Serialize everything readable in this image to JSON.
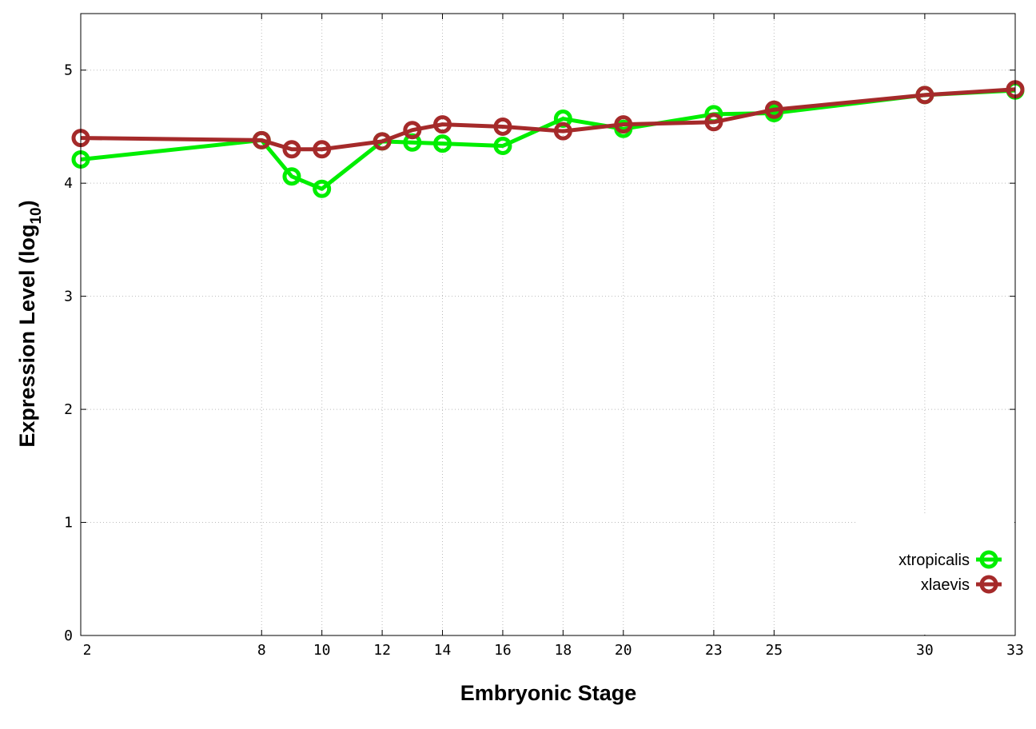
{
  "chart_data": {
    "type": "line",
    "xlabel": "Embryonic Stage",
    "ylabel": {
      "main": "Expression Level (log",
      "sub": "10",
      "close": ")"
    },
    "xlim": [
      2,
      33
    ],
    "ylim": [
      0,
      5.5
    ],
    "x_ticks": [
      2,
      8,
      10,
      12,
      14,
      16,
      18,
      20,
      23,
      25,
      30,
      33
    ],
    "y_ticks": [
      0,
      1,
      2,
      3,
      4,
      5
    ],
    "grid": true,
    "legend": "bottom-right",
    "x": [
      2,
      8,
      9,
      10,
      12,
      13,
      14,
      16,
      18,
      20,
      23,
      25,
      30,
      33
    ],
    "series": [
      {
        "name": "xtropicalis",
        "color": "#00ee00",
        "values": [
          4.21,
          4.38,
          4.06,
          3.95,
          4.37,
          4.36,
          4.35,
          4.33,
          4.57,
          4.48,
          4.61,
          4.62,
          4.78,
          4.82
        ]
      },
      {
        "name": "xlaevis",
        "color": "#a52a2a",
        "values": [
          4.4,
          4.38,
          4.3,
          4.3,
          4.37,
          4.47,
          4.52,
          4.5,
          4.46,
          4.52,
          4.54,
          4.65,
          4.78,
          4.83
        ]
      }
    ]
  }
}
